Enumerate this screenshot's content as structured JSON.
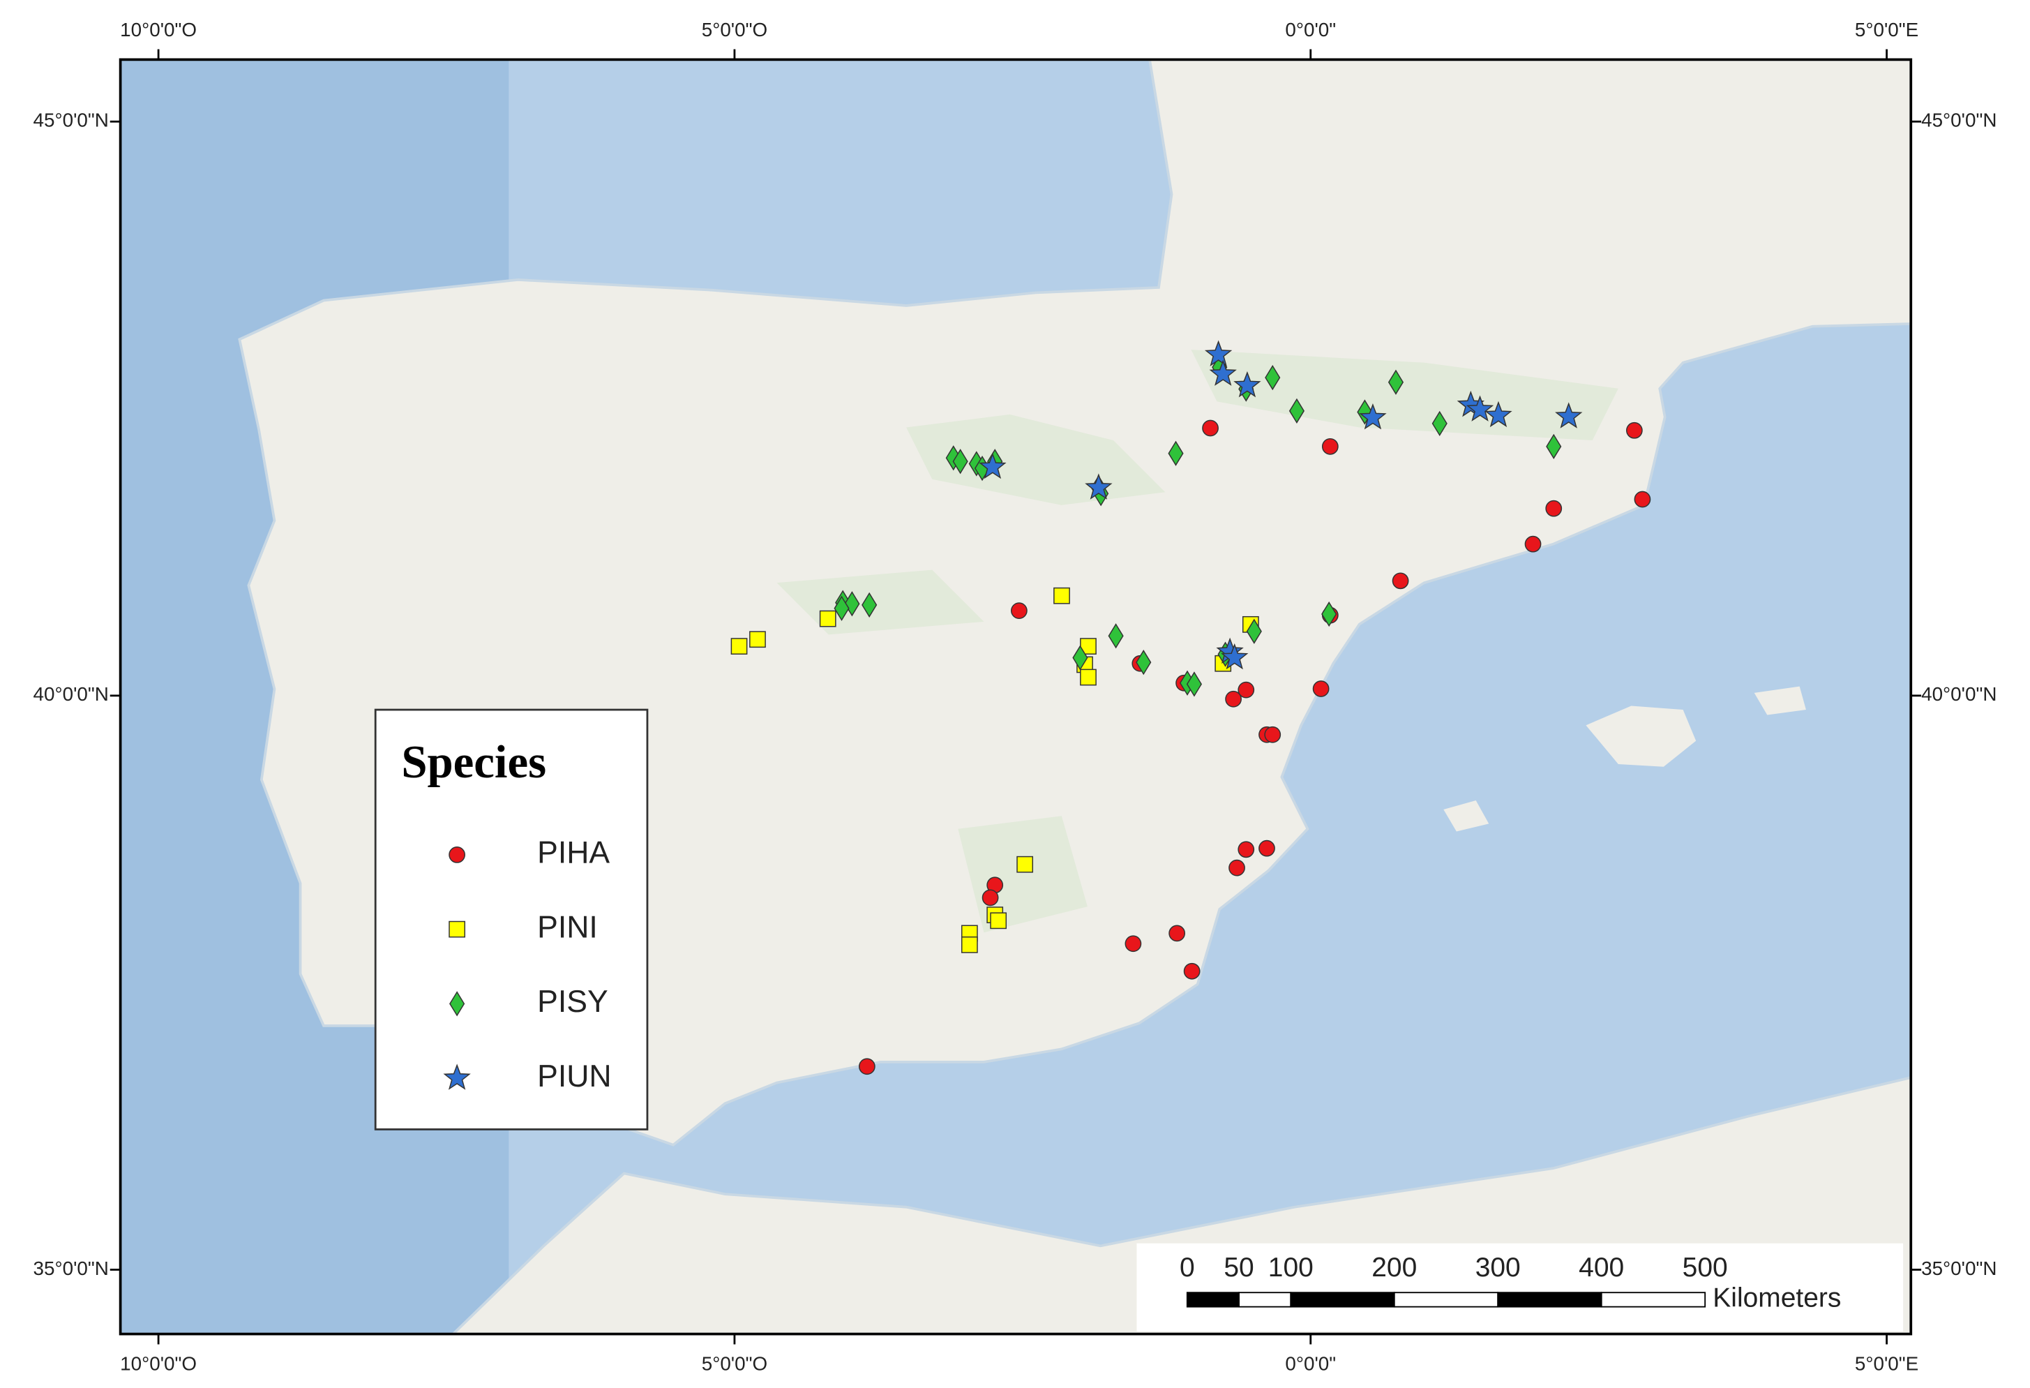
{
  "map_data": {
    "xlim": [
      -10.33,
      5.21
    ],
    "ylim": [
      34.44,
      45.54
    ],
    "xticks": [
      {
        "value": -10,
        "label": "10°0'0\"O"
      },
      {
        "value": -5,
        "label": "5°0'0\"O"
      },
      {
        "value": 0,
        "label": "0°0'0\""
      },
      {
        "value": 5,
        "label": "5°0'0\"E"
      }
    ],
    "yticks": [
      {
        "value": 35,
        "label": "35°0'0\"N"
      },
      {
        "value": 40,
        "label": "40°0'0\"N"
      },
      {
        "value": 45,
        "label": "45°0'0\"N"
      }
    ],
    "legend_title": "Species",
    "series": [
      {
        "name": "PIHA",
        "color": "#e8161b",
        "marker": "circle",
        "lon": [
          -0.87,
          0.17,
          2.81,
          2.88,
          2.11,
          1.93,
          0.78,
          -2.53,
          0.17,
          -1.48,
          0.09,
          -0.56,
          -0.67,
          -0.38,
          -0.33,
          -0.56,
          -0.38,
          -0.64,
          -2.74,
          -2.78,
          -1.16,
          -1.54,
          -1.03,
          -3.85,
          -1.1
        ],
        "lat": [
          42.33,
          42.17,
          42.31,
          41.71,
          41.63,
          41.32,
          41.0,
          40.74,
          40.7,
          40.28,
          40.06,
          40.05,
          39.97,
          39.66,
          39.66,
          38.66,
          38.67,
          38.5,
          38.35,
          38.24,
          37.93,
          37.84,
          37.6,
          36.77,
          40.11
        ]
      },
      {
        "name": "PINI",
        "color": "#ffff00",
        "marker": "square",
        "lon": [
          -2.16,
          -0.52,
          -4.19,
          -4.8,
          -4.96,
          -1.93,
          -1.96,
          -1.93,
          -0.76,
          -2.48,
          -2.74,
          -2.71,
          -2.96,
          -2.96
        ],
        "lat": [
          40.87,
          40.62,
          40.67,
          40.49,
          40.43,
          40.43,
          40.27,
          40.16,
          40.28,
          38.53,
          38.09,
          38.04,
          37.93,
          37.83
        ]
      },
      {
        "name": "PISY",
        "color": "#2fc23a",
        "marker": "diamond",
        "lon": [
          -0.79,
          -0.33,
          -0.56,
          0.74,
          -0.12,
          0.47,
          1.12,
          2.11,
          -1.17,
          -3.1,
          -3.04,
          -2.9,
          -2.85,
          -2.74,
          -1.84,
          -1.82,
          -4.06,
          -3.98,
          -3.83,
          -4.07,
          0.16,
          -1.69,
          -0.49,
          -2.0,
          -1.45,
          -1.07,
          -1.01,
          -0.74
        ],
        "lat": [
          42.86,
          42.77,
          42.67,
          42.73,
          42.48,
          42.47,
          42.37,
          42.17,
          42.11,
          42.07,
          42.04,
          42.02,
          41.98,
          42.04,
          41.81,
          41.76,
          40.81,
          40.8,
          40.79,
          40.76,
          40.71,
          40.52,
          40.56,
          40.33,
          40.29,
          40.11,
          40.1,
          40.36
        ]
      },
      {
        "name": "PIUN",
        "color": "#2f6fd0",
        "marker": "star",
        "lon": [
          -0.8,
          -0.76,
          -0.55,
          1.39,
          1.47,
          1.63,
          0.54,
          2.24,
          -2.76,
          -1.84,
          -0.7,
          -0.66
        ],
        "lat": [
          42.97,
          42.8,
          42.7,
          42.53,
          42.49,
          42.44,
          42.42,
          42.43,
          41.99,
          41.81,
          40.38,
          40.33
        ]
      }
    ],
    "scale_bar": {
      "ticks": [
        0,
        50,
        100,
        200,
        300,
        400,
        500
      ],
      "unit": "Kilometers"
    }
  }
}
